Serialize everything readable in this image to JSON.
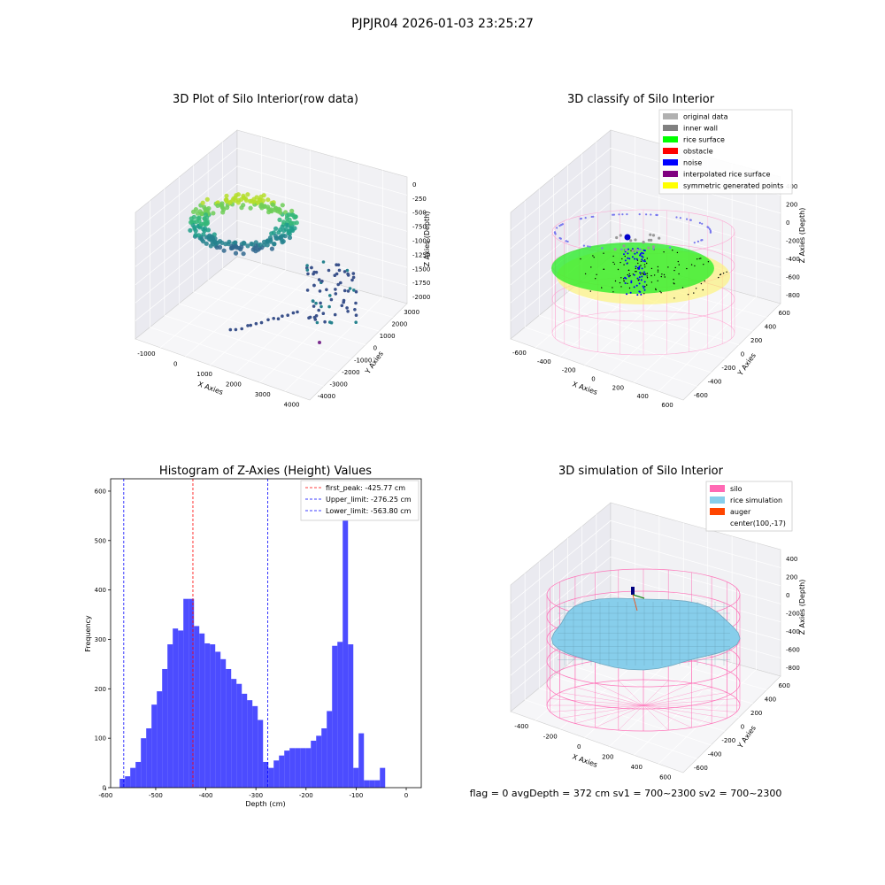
{
  "suptitle": "PJPJR04 2026-01-03 23:25:27",
  "footer": "flag = 0     avgDepth = 372 cm  sv1 = 700~2300  sv2 = 700~2300",
  "chart_data": [
    {
      "type": "scatter",
      "projection": "3d",
      "title": "3D Plot of Silo Interior(row data)",
      "xlabel": "X Axies",
      "ylabel": "Y Axies",
      "zlabel": "Z Axies (Depth)",
      "x_ticks": [
        "-1000",
        "0",
        "1000",
        "2000",
        "3000",
        "4000"
      ],
      "y_ticks": [
        "-4000",
        "-3000",
        "-2000",
        "-1000",
        "0",
        "1000",
        "2000",
        "3000"
      ],
      "z_ticks": [
        "-2000",
        "-1750",
        "-1500",
        "-1250",
        "-1000",
        "-750",
        "-500",
        "-250",
        "0"
      ],
      "colormap": "viridis"
    },
    {
      "type": "scatter",
      "projection": "3d",
      "title": "3D classify of Silo Interior",
      "xlabel": "X Axies",
      "ylabel": "Y Axies",
      "zlabel": "Z Axies (Depth)",
      "x_ticks": [
        "-600",
        "-400",
        "-200",
        "0",
        "200",
        "400",
        "600"
      ],
      "y_ticks": [
        "-600",
        "-400",
        "-200",
        "0",
        "200",
        "400",
        "600"
      ],
      "z_ticks": [
        "-800",
        "-600",
        "-400",
        "-200",
        "0",
        "200",
        "400"
      ],
      "legend_position": "top-right",
      "legend": [
        {
          "label": "original data",
          "color": "#b0b0b0"
        },
        {
          "label": "inner wall",
          "color": "#808080"
        },
        {
          "label": "rice surface",
          "color": "#00ff00"
        },
        {
          "label": "obstacle",
          "color": "#ff0000"
        },
        {
          "label": "noise",
          "color": "#0000ff"
        },
        {
          "label": "interpolated rice surface",
          "color": "#800080"
        },
        {
          "label": "symmetric generated points",
          "color": "#ffff00"
        }
      ]
    },
    {
      "type": "bar",
      "title": "Histogram of Z-Axies (Height) Values",
      "xlabel": "Depth (cm)",
      "ylabel": "Frequency",
      "xlim": [
        -590,
        30
      ],
      "ylim": [
        0,
        625
      ],
      "x_ticks": [
        -600,
        -500,
        -400,
        -300,
        -200,
        -100,
        0
      ],
      "y_ticks": [
        0,
        100,
        200,
        300,
        400,
        500,
        600
      ],
      "bar_color": "#0000ff",
      "bin_start": -572,
      "bin_width": 10.6,
      "values": [
        18,
        23,
        40,
        52,
        100,
        120,
        168,
        195,
        240,
        290,
        322,
        318,
        382,
        382,
        327,
        312,
        292,
        290,
        275,
        260,
        240,
        220,
        210,
        190,
        177,
        165,
        137,
        52,
        40,
        55,
        65,
        75,
        80,
        80,
        80,
        80,
        95,
        105,
        120,
        155,
        287,
        295,
        600,
        290,
        40,
        110,
        15,
        15,
        15,
        40
      ],
      "lines": [
        {
          "label": "first_peak: -425.77 cm",
          "x": -425.77,
          "color": "#ff0000"
        },
        {
          "label": "Upper_limit: -276.25 cm",
          "x": -276.25,
          "color": "#0000ff"
        },
        {
          "label": "Lower_limit: -563.80 cm",
          "x": -563.8,
          "color": "#0000ff"
        }
      ],
      "legend_position": "top-right"
    },
    {
      "type": "surface",
      "projection": "3d",
      "title": "3D simulation of Silo Interior",
      "xlabel": "X Axies",
      "ylabel": "Y Axies",
      "zlabel": "Z Axies (Depth)",
      "x_ticks": [
        "-400",
        "-200",
        "0",
        "200",
        "400",
        "600"
      ],
      "y_ticks": [
        "-600",
        "-400",
        "-200",
        "0",
        "200",
        "400",
        "600"
      ],
      "z_ticks": [
        "-800",
        "-600",
        "-400",
        "-200",
        "0",
        "200",
        "400"
      ],
      "legend_position": "top-right",
      "legend": [
        {
          "label": "silo",
          "color": "#ff69b4"
        },
        {
          "label": "rice simulation",
          "color": "#87ceeb"
        },
        {
          "label": "auger",
          "color": "#ff4500"
        },
        {
          "label": "center(100,-17)",
          "color": ""
        }
      ]
    }
  ]
}
